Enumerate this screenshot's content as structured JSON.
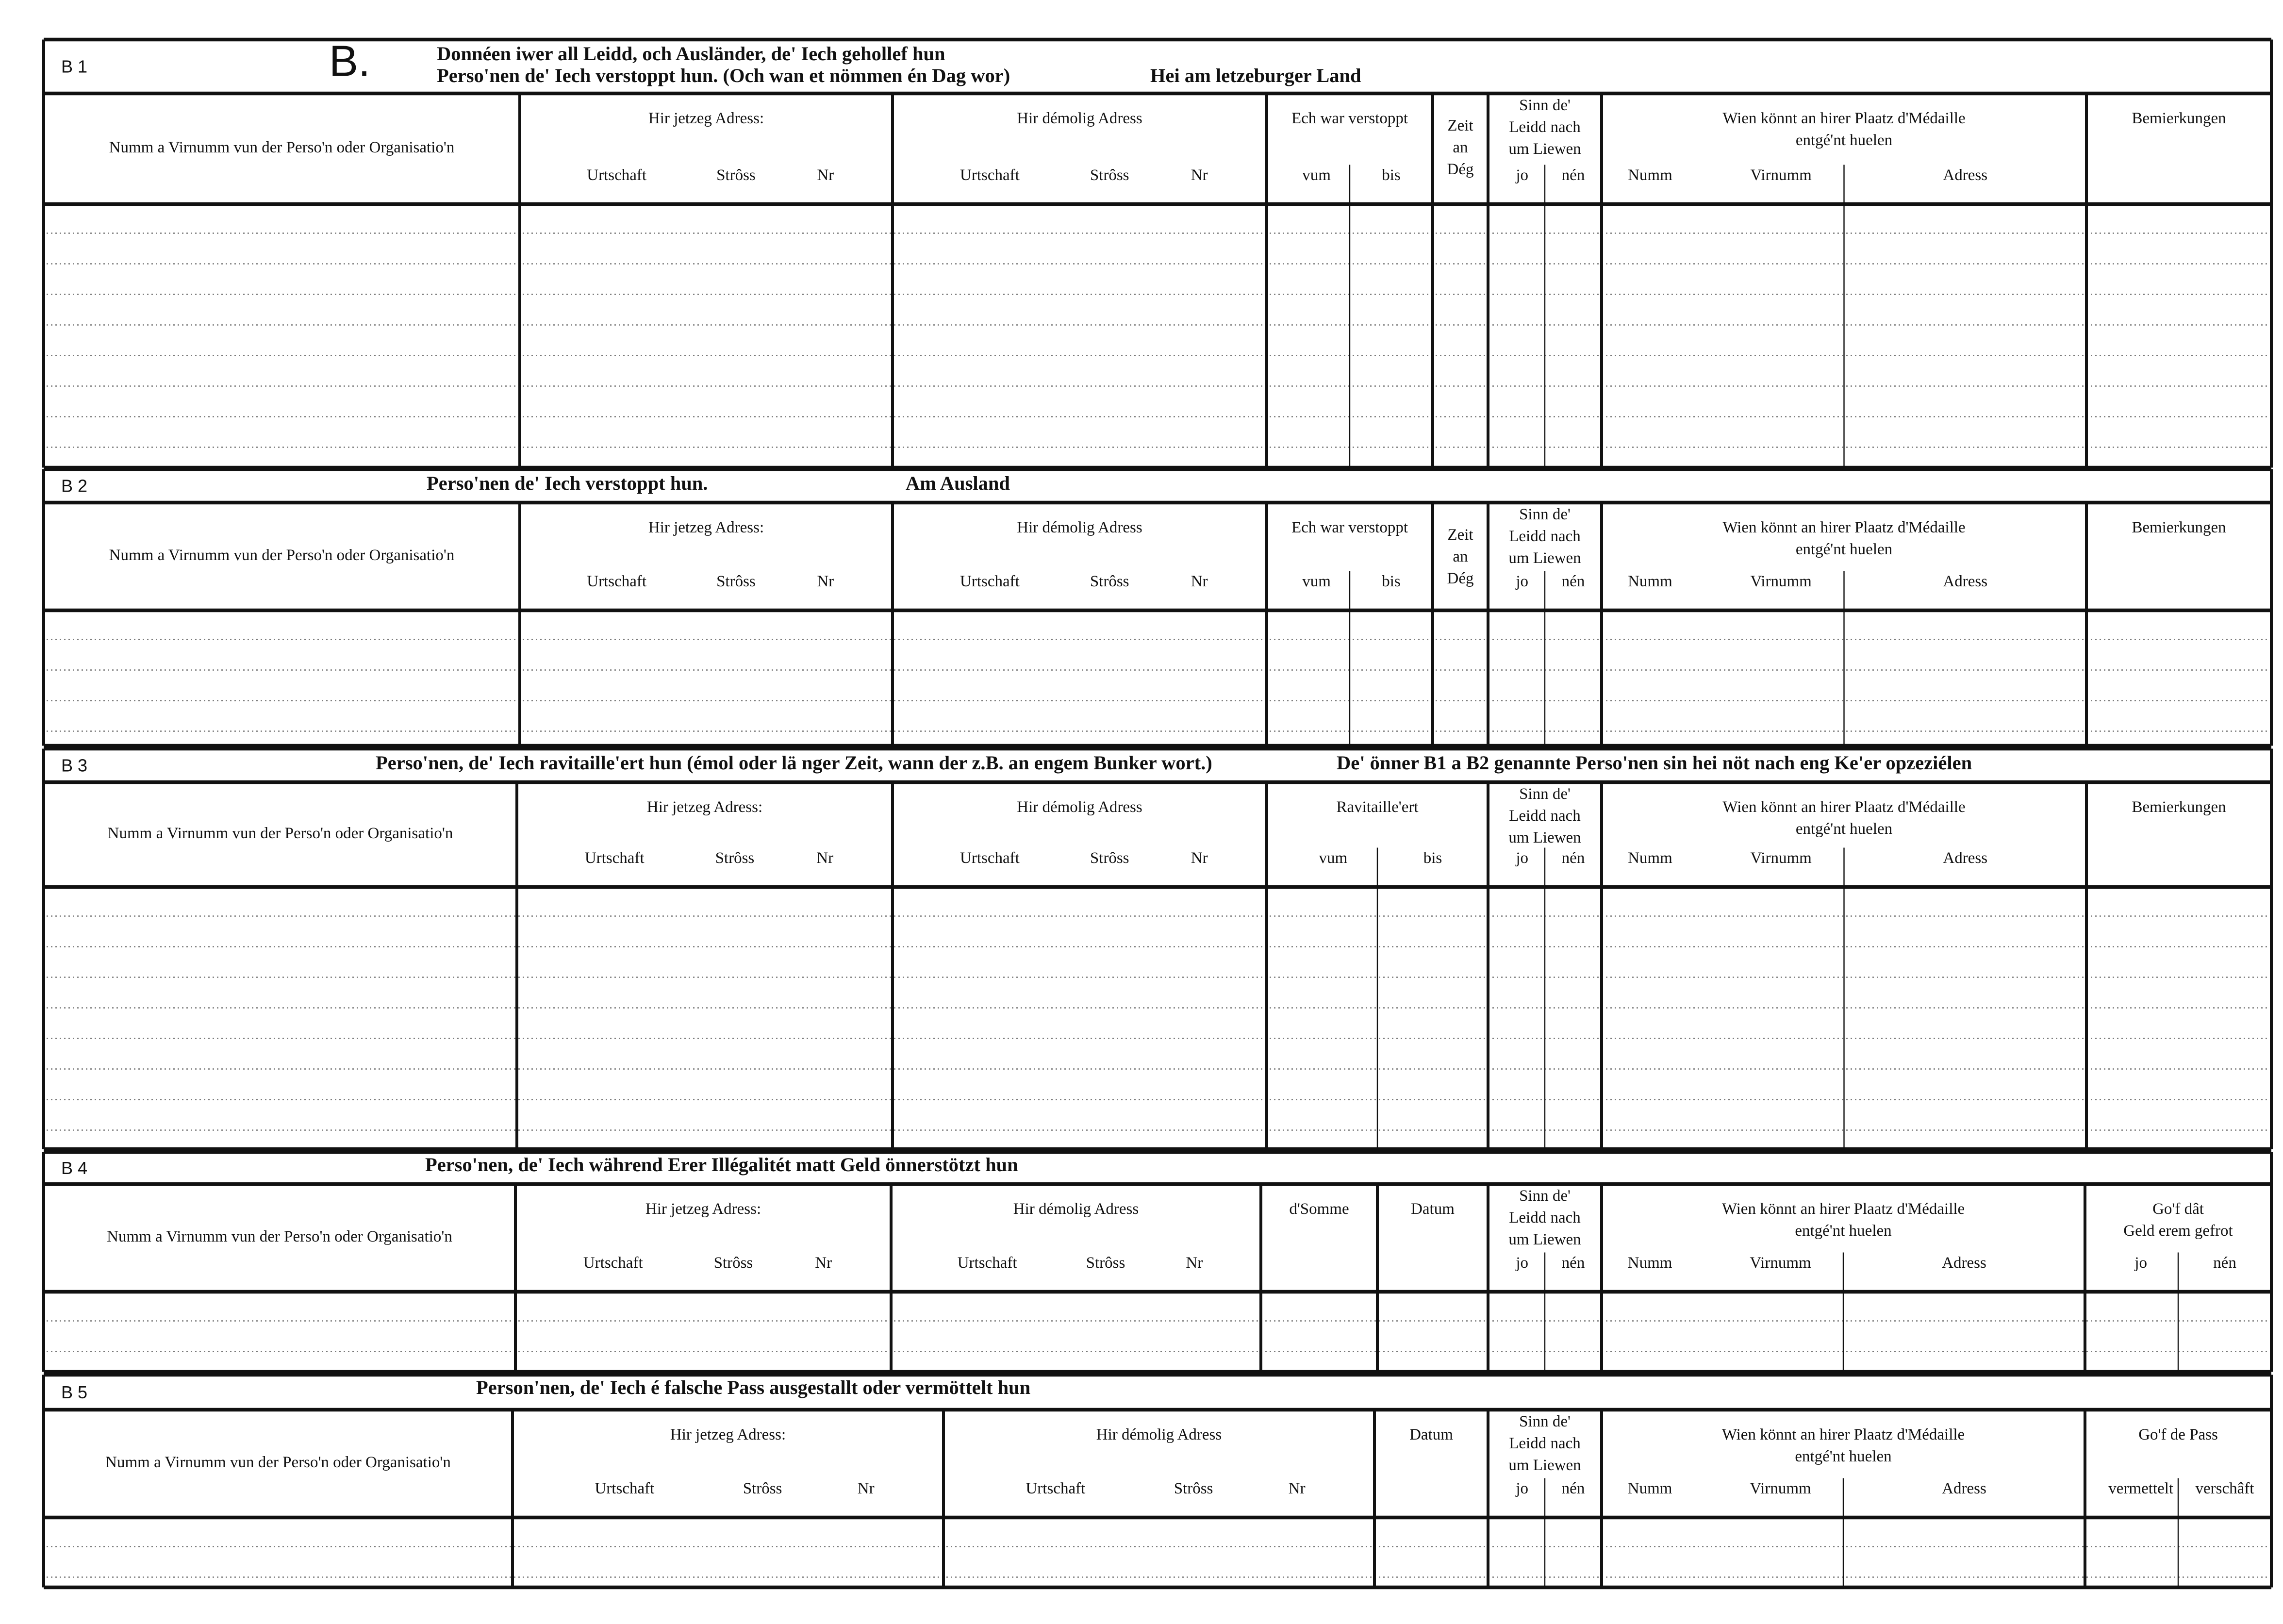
{
  "form": {
    "letter": "B."
  },
  "sections": [
    {
      "label": "B 1",
      "heading": [
        "Donnéen iwer all Leidd, och Ausländer, de' Iech gehollef hun",
        "Perso'nen de' Iech verstoppt hun. (Och wan et nömmen én Dag wor)",
        "Hei am letzeburger Land"
      ],
      "columns": [
        {
          "title": [
            "Numm a Virnumm vun der Perso'n oder Organisatio'n"
          ],
          "sub": []
        },
        {
          "title": [
            "Hir jetzeg Adress:"
          ],
          "sub": [
            "Urtschaft",
            "Strôss",
            "Nr"
          ]
        },
        {
          "title": [
            "Hir démolig Adress"
          ],
          "sub": [
            "Urtschaft",
            "Strôss",
            "Nr"
          ]
        },
        {
          "title": [
            "Ech war verstoppt"
          ],
          "sub": [
            "vum",
            "bis"
          ]
        },
        {
          "title": [
            "Zeit",
            "an",
            "Dég"
          ],
          "sub": []
        },
        {
          "title": [
            "Sinn de'",
            "Leidd nach",
            "um Liewen"
          ],
          "sub": [
            "jo",
            "nén"
          ]
        },
        {
          "title": [
            "Wien könnt an hirer Plaatz d'Médaille",
            "entgé'nt huelen"
          ],
          "sub": [
            "Numm",
            "Virnumm",
            "Adress"
          ]
        },
        {
          "title": [
            "Bemierkungen"
          ],
          "sub": []
        }
      ]
    },
    {
      "label": "B 2",
      "heading": [
        "Perso'nen de' Iech verstoppt hun.",
        "Am Ausland"
      ],
      "columns": [
        {
          "title": [
            "Numm a Virnumm vun der Perso'n oder Organisatio'n"
          ],
          "sub": []
        },
        {
          "title": [
            "Hir jetzeg Adress:"
          ],
          "sub": [
            "Urtschaft",
            "Strôss",
            "Nr"
          ]
        },
        {
          "title": [
            "Hir démolig Adress"
          ],
          "sub": [
            "Urtschaft",
            "Strôss",
            "Nr"
          ]
        },
        {
          "title": [
            "Ech war verstoppt"
          ],
          "sub": [
            "vum",
            "bis"
          ]
        },
        {
          "title": [
            "Zeit",
            "an",
            "Dég"
          ],
          "sub": []
        },
        {
          "title": [
            "Sinn de'",
            "Leidd nach",
            "um Liewen"
          ],
          "sub": [
            "jo",
            "nén"
          ]
        },
        {
          "title": [
            "Wien könnt an hirer Plaatz d'Médaille",
            "entgé'nt huelen"
          ],
          "sub": [
            "Numm",
            "Virnumm",
            "Adress"
          ]
        },
        {
          "title": [
            "Bemierkungen"
          ],
          "sub": []
        }
      ]
    },
    {
      "label": "B 3",
      "heading": [
        "Perso'nen, de' Iech ravitaille'ert hun (émol oder lä nger Zeit, wann der z.B. an engem Bunker wort.)",
        "De' önner B1 a B2 genannte Perso'nen sin hei nöt nach eng Ke'er opzeziélen"
      ],
      "columns": [
        {
          "title": [
            "Numm a Virnumm vun der Perso'n oder Organisatio'n"
          ],
          "sub": []
        },
        {
          "title": [
            "Hir jetzeg Adress:"
          ],
          "sub": [
            "Urtschaft",
            "Strôss",
            "Nr"
          ]
        },
        {
          "title": [
            "Hir démolig Adress"
          ],
          "sub": [
            "Urtschaft",
            "Strôss",
            "Nr"
          ]
        },
        {
          "title": [
            "Ravitaille'ert"
          ],
          "sub": [
            "vum",
            "bis"
          ]
        },
        {
          "title": [
            "Sinn de'",
            "Leidd nach",
            "um Liewen"
          ],
          "sub": [
            "jo",
            "nén"
          ]
        },
        {
          "title": [
            "Wien könnt an hirer Plaatz d'Médaille",
            "entgé'nt huelen"
          ],
          "sub": [
            "Numm",
            "Virnumm",
            "Adress"
          ]
        },
        {
          "title": [
            "Bemierkungen"
          ],
          "sub": []
        }
      ]
    },
    {
      "label": "B 4",
      "heading": [
        "Perso'nen, de' Iech während Erer Illégalitét matt Geld önnerstötzt hun"
      ],
      "columns": [
        {
          "title": [
            "Numm a Virnumm vun der Perso'n oder Organisatio'n"
          ],
          "sub": []
        },
        {
          "title": [
            "Hir jetzeg Adress:"
          ],
          "sub": [
            "Urtschaft",
            "Strôss",
            "Nr"
          ]
        },
        {
          "title": [
            "Hir démolig Adress"
          ],
          "sub": [
            "Urtschaft",
            "Strôss",
            "Nr"
          ]
        },
        {
          "title": [
            "d'Somme"
          ],
          "sub": []
        },
        {
          "title": [
            "Datum"
          ],
          "sub": []
        },
        {
          "title": [
            "Sinn de'",
            "Leidd nach",
            "um Liewen"
          ],
          "sub": [
            "jo",
            "nén"
          ]
        },
        {
          "title": [
            "Wien könnt an hirer Plaatz d'Médaille",
            "entgé'nt huelen"
          ],
          "sub": [
            "Numm",
            "Virnumm",
            "Adress"
          ]
        },
        {
          "title": [
            "Go'f dât",
            "Geld erem gefrot"
          ],
          "sub": [
            "jo",
            "nén"
          ]
        }
      ]
    },
    {
      "label": "B 5",
      "heading": [
        "Person'nen, de' Iech é falsche Pass ausgestallt oder vermöttelt hun"
      ],
      "columns": [
        {
          "title": [
            "Numm a Virnumm vun der Perso'n oder Organisatio'n"
          ],
          "sub": []
        },
        {
          "title": [
            "Hir jetzeg Adress:"
          ],
          "sub": [
            "Urtschaft",
            "Strôss",
            "Nr"
          ]
        },
        {
          "title": [
            "Hir démolig Adress"
          ],
          "sub": [
            "Urtschaft",
            "Strôss",
            "Nr"
          ]
        },
        {
          "title": [
            "Datum"
          ],
          "sub": []
        },
        {
          "title": [
            "Sinn de'",
            "Leidd nach",
            "um Liewen"
          ],
          "sub": [
            "jo",
            "nén"
          ]
        },
        {
          "title": [
            "Wien könnt an hirer Plaatz d'Médaille",
            "entgé'nt huelen"
          ],
          "sub": [
            "Numm",
            "Virnumm",
            "Adress"
          ]
        },
        {
          "title": [
            "Go'f de Pass"
          ],
          "sub": [
            "vermettelt",
            "verschâft"
          ]
        }
      ]
    }
  ]
}
